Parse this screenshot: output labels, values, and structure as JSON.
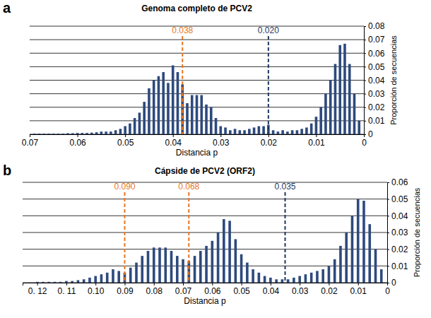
{
  "chart_data": [
    {
      "type": "bar",
      "panel_label": "a",
      "title": "Genoma completo de PCV2",
      "x_label": "Distancia p",
      "y_label": "Proporción de secuencias",
      "color": "#2e4a7d",
      "grid": true,
      "x": [
        0.069,
        0.068,
        0.067,
        0.066,
        0.065,
        0.064,
        0.063,
        0.062,
        0.061,
        0.06,
        0.059,
        0.058,
        0.057,
        0.056,
        0.055,
        0.054,
        0.053,
        0.052,
        0.051,
        0.05,
        0.049,
        0.048,
        0.047,
        0.046,
        0.045,
        0.044,
        0.043,
        0.042,
        0.041,
        0.04,
        0.039,
        0.038,
        0.037,
        0.036,
        0.035,
        0.034,
        0.033,
        0.032,
        0.031,
        0.03,
        0.029,
        0.028,
        0.027,
        0.026,
        0.025,
        0.024,
        0.023,
        0.022,
        0.021,
        0.02,
        0.019,
        0.018,
        0.017,
        0.016,
        0.015,
        0.014,
        0.013,
        0.012,
        0.011,
        0.01,
        0.009,
        0.008,
        0.007,
        0.006,
        0.005,
        0.004,
        0.003,
        0.002,
        0.001
      ],
      "values": [
        0.0005,
        0.0005,
        0.0005,
        0.0005,
        0.0005,
        0.0005,
        0.0005,
        0.0008,
        0.0008,
        0.001,
        0.001,
        0.001,
        0.0012,
        0.0015,
        0.002,
        0.002,
        0.002,
        0.003,
        0.004,
        0.006,
        0.008,
        0.012,
        0.016,
        0.024,
        0.034,
        0.04,
        0.043,
        0.046,
        0.038,
        0.051,
        0.046,
        0.037,
        0.023,
        0.029,
        0.029,
        0.029,
        0.022,
        0.02,
        0.012,
        0.006,
        0.005,
        0.003,
        0.004,
        0.003,
        0.003,
        0.004,
        0.005,
        0.006,
        0.006,
        0.007,
        0.003,
        0.002,
        0.003,
        0.002,
        0.003,
        0.003,
        0.004,
        0.005,
        0.008,
        0.013,
        0.02,
        0.03,
        0.04,
        0.052,
        0.066,
        0.067,
        0.052,
        0.03,
        0.01
      ],
      "xlim": [
        0.07,
        0
      ],
      "xticks": [
        0.07,
        0.06,
        0.05,
        0.04,
        0.03,
        0.02,
        0.01,
        0
      ],
      "ylim": [
        0,
        0.08
      ],
      "yticks": [
        0,
        0.01,
        0.02,
        0.03,
        0.04,
        0.05,
        0.06,
        0.07,
        0.08
      ],
      "annotations": [
        {
          "x": 0.038,
          "text": "0.038",
          "color": "#e87722"
        },
        {
          "x": 0.02,
          "text": "0.020",
          "color": "#1f3864"
        }
      ]
    },
    {
      "type": "bar",
      "panel_label": "b",
      "title": "Cápside de PCV2 (ORF2)",
      "x_label": "Distancia p",
      "y_label": "Proporción de secuencias",
      "color": "#2e4a7d",
      "grid": true,
      "x": [
        0.12,
        0.118,
        0.116,
        0.114,
        0.112,
        0.11,
        0.108,
        0.106,
        0.104,
        0.102,
        0.1,
        0.098,
        0.096,
        0.094,
        0.092,
        0.09,
        0.088,
        0.086,
        0.084,
        0.082,
        0.08,
        0.078,
        0.076,
        0.074,
        0.072,
        0.07,
        0.068,
        0.066,
        0.064,
        0.062,
        0.06,
        0.058,
        0.056,
        0.054,
        0.052,
        0.05,
        0.048,
        0.046,
        0.044,
        0.042,
        0.04,
        0.038,
        0.036,
        0.034,
        0.032,
        0.03,
        0.028,
        0.026,
        0.024,
        0.022,
        0.02,
        0.018,
        0.016,
        0.014,
        0.012,
        0.01,
        0.008,
        0.006,
        0.004,
        0.002
      ],
      "values": [
        0.0005,
        0.0005,
        0.0005,
        0.0005,
        0.0005,
        0.001,
        0.001,
        0.0015,
        0.002,
        0.003,
        0.004,
        0.005,
        0.006,
        0.008,
        0.007,
        0.006,
        0.009,
        0.012,
        0.016,
        0.019,
        0.021,
        0.021,
        0.021,
        0.019,
        0.016,
        0.014,
        0.013,
        0.016,
        0.019,
        0.022,
        0.025,
        0.03,
        0.038,
        0.037,
        0.026,
        0.017,
        0.012,
        0.008,
        0.006,
        0.004,
        0.003,
        0.002,
        0.002,
        0.002,
        0.003,
        0.004,
        0.005,
        0.006,
        0.007,
        0.008,
        0.01,
        0.014,
        0.022,
        0.03,
        0.04,
        0.05,
        0.049,
        0.035,
        0.02,
        0.008
      ],
      "xlim": [
        0.125,
        0
      ],
      "xticks": [
        {
          "value": 0.12,
          "label": "0. 12"
        },
        {
          "value": 0.11,
          "label": "0. 11"
        },
        {
          "value": 0.1,
          "label": "0.10"
        },
        0.09,
        0.08,
        0.07,
        0.06,
        0.05,
        0.04,
        0.03,
        0.02,
        0.01,
        0
      ],
      "ylim": [
        0,
        0.06
      ],
      "yticks": [
        0,
        0.01,
        0.02,
        0.03,
        0.04,
        0.05,
        0.06
      ],
      "annotations": [
        {
          "x": 0.09,
          "text": "0.090",
          "color": "#e87722"
        },
        {
          "x": 0.068,
          "text": "0.068",
          "color": "#e87722"
        },
        {
          "x": 0.035,
          "text": "0.035",
          "color": "#1f3864"
        }
      ]
    }
  ]
}
